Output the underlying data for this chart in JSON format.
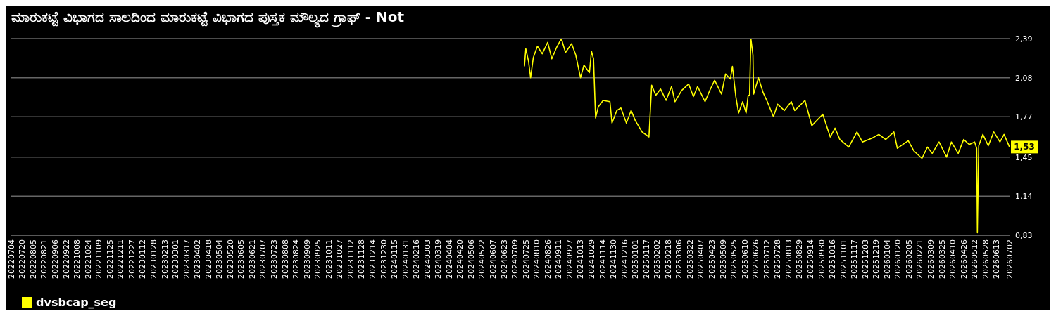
{
  "chart_data": {
    "type": "line",
    "title": "ಮಾರುಕಟ್ಟೆ ವಿಭಾಗದ ಸಾಲದಿಂದ ಮಾರುಕಟ್ಟೆ ವಿಭಾಗದ ಪುಸ್ತಕ ಮೌಲ್ಯದ ಗ್ರಾಫ್ - Not",
    "xlim": [
      "2022-07-04",
      "2026-07-02"
    ],
    "xticks": [
      {
        "value": "2022-07-04",
        "label": "20220704"
      },
      {
        "value": "2022-07-20",
        "label": "20220720"
      },
      {
        "value": "2022-08-05",
        "label": "20220805"
      },
      {
        "value": "2022-08-21",
        "label": "20220821"
      },
      {
        "value": "2022-09-06",
        "label": "20220906"
      },
      {
        "value": "2022-09-22",
        "label": "20220922"
      },
      {
        "value": "2022-10-08",
        "label": "20221008"
      },
      {
        "value": "2022-10-24",
        "label": "20221024"
      },
      {
        "value": "2022-11-09",
        "label": "20221109"
      },
      {
        "value": "2022-11-25",
        "label": "20221125"
      },
      {
        "value": "2022-12-11",
        "label": "20221211"
      },
      {
        "value": "2022-12-27",
        "label": "20221227"
      },
      {
        "value": "2023-01-12",
        "label": "20230112"
      },
      {
        "value": "2023-01-28",
        "label": "20230128"
      },
      {
        "value": "2023-02-13",
        "label": "20230213"
      },
      {
        "value": "2023-03-01",
        "label": "20230301"
      },
      {
        "value": "2023-03-17",
        "label": "20230317"
      },
      {
        "value": "2023-04-02",
        "label": "20230402"
      },
      {
        "value": "2023-04-18",
        "label": "20230418"
      },
      {
        "value": "2023-05-04",
        "label": "20230504"
      },
      {
        "value": "2023-05-20",
        "label": "20230520"
      },
      {
        "value": "2023-06-05",
        "label": "20230605"
      },
      {
        "value": "2023-06-21",
        "label": "20230621"
      },
      {
        "value": "2023-07-07",
        "label": "20230707"
      },
      {
        "value": "2023-07-23",
        "label": "20230723"
      },
      {
        "value": "2023-08-08",
        "label": "20230808"
      },
      {
        "value": "2023-08-24",
        "label": "20230824"
      },
      {
        "value": "2023-09-09",
        "label": "20230909"
      },
      {
        "value": "2023-09-25",
        "label": "20230925"
      },
      {
        "value": "2023-10-11",
        "label": "20231011"
      },
      {
        "value": "2023-10-27",
        "label": "20231027"
      },
      {
        "value": "2023-11-12",
        "label": "20231112"
      },
      {
        "value": "2023-11-28",
        "label": "20231128"
      },
      {
        "value": "2023-12-14",
        "label": "20231214"
      },
      {
        "value": "2023-12-30",
        "label": "20231230"
      },
      {
        "value": "2024-01-15",
        "label": "20240115"
      },
      {
        "value": "2024-01-31",
        "label": "20240131"
      },
      {
        "value": "2024-02-16",
        "label": "20240216"
      },
      {
        "value": "2024-03-03",
        "label": "20240303"
      },
      {
        "value": "2024-03-19",
        "label": "20240319"
      },
      {
        "value": "2024-04-04",
        "label": "20240404"
      },
      {
        "value": "2024-04-20",
        "label": "20240420"
      },
      {
        "value": "2024-05-06",
        "label": "20240506"
      },
      {
        "value": "2024-05-22",
        "label": "20240522"
      },
      {
        "value": "2024-06-07",
        "label": "20240607"
      },
      {
        "value": "2024-06-23",
        "label": "20240623"
      },
      {
        "value": "2024-07-09",
        "label": "20240709"
      },
      {
        "value": "2024-07-25",
        "label": "20240725"
      },
      {
        "value": "2024-08-10",
        "label": "20240810"
      },
      {
        "value": "2024-08-26",
        "label": "20240826"
      },
      {
        "value": "2024-09-11",
        "label": "20240911"
      },
      {
        "value": "2024-09-27",
        "label": "20240927"
      },
      {
        "value": "2024-10-13",
        "label": "20241013"
      },
      {
        "value": "2024-10-29",
        "label": "20241029"
      },
      {
        "value": "2024-11-14",
        "label": "20241114"
      },
      {
        "value": "2024-11-30",
        "label": "20241130"
      },
      {
        "value": "2024-12-16",
        "label": "20241216"
      },
      {
        "value": "2025-01-01",
        "label": "20250101"
      },
      {
        "value": "2025-01-17",
        "label": "20250117"
      },
      {
        "value": "2025-02-02",
        "label": "20250202"
      },
      {
        "value": "2025-02-18",
        "label": "20250218"
      },
      {
        "value": "2025-03-06",
        "label": "20250306"
      },
      {
        "value": "2025-03-22",
        "label": "20250322"
      },
      {
        "value": "2025-04-07",
        "label": "20250407"
      },
      {
        "value": "2025-04-23",
        "label": "20250423"
      },
      {
        "value": "2025-05-09",
        "label": "20250509"
      },
      {
        "value": "2025-05-25",
        "label": "20250525"
      },
      {
        "value": "2025-06-10",
        "label": "20250610"
      },
      {
        "value": "2025-06-26",
        "label": "20250626"
      },
      {
        "value": "2025-07-12",
        "label": "20250712"
      },
      {
        "value": "2025-07-28",
        "label": "20250728"
      },
      {
        "value": "2025-08-13",
        "label": "20250813"
      },
      {
        "value": "2025-08-29",
        "label": "20250829"
      },
      {
        "value": "2025-09-14",
        "label": "20250914"
      },
      {
        "value": "2025-09-30",
        "label": "20250930"
      },
      {
        "value": "2025-10-16",
        "label": "20251016"
      },
      {
        "value": "2025-11-01",
        "label": "20251101"
      },
      {
        "value": "2025-11-17",
        "label": "20251117"
      },
      {
        "value": "2025-12-03",
        "label": "20251203"
      },
      {
        "value": "2025-12-19",
        "label": "20251219"
      },
      {
        "value": "2026-01-04",
        "label": "20260104"
      },
      {
        "value": "2026-01-20",
        "label": "20260120"
      },
      {
        "value": "2026-02-05",
        "label": "20260205"
      },
      {
        "value": "2026-02-21",
        "label": "20260221"
      },
      {
        "value": "2026-03-09",
        "label": "20260309"
      },
      {
        "value": "2026-03-25",
        "label": "20260325"
      },
      {
        "value": "2026-04-10",
        "label": "20260410"
      },
      {
        "value": "2026-04-26",
        "label": "20260426"
      },
      {
        "value": "2026-05-12",
        "label": "20260512"
      },
      {
        "value": "2026-05-28",
        "label": "20260528"
      },
      {
        "value": "2026-06-13",
        "label": "20260613"
      },
      {
        "value": "2026-07-02",
        "label": "20260702"
      }
    ],
    "ylim": [
      0.83,
      2.39
    ],
    "yticks": [
      {
        "value": 0.83,
        "label": "0,83"
      },
      {
        "value": 1.14,
        "label": "1,14"
      },
      {
        "value": 1.45,
        "label": "1,45"
      },
      {
        "value": 1.77,
        "label": "1,77"
      },
      {
        "value": 2.08,
        "label": "2,08"
      },
      {
        "value": 2.39,
        "label": "2,39"
      }
    ],
    "grid": "y",
    "legend": "bottom left",
    "marker": "none",
    "line_style": "solid",
    "x": [
      "2024-07-23",
      "2024-07-25",
      "2024-07-29",
      "2024-08-01",
      "2024-08-05",
      "2024-08-11",
      "2024-08-18",
      "2024-08-26",
      "2024-09-01",
      "2024-09-08",
      "2024-09-15",
      "2024-09-21",
      "2024-09-30",
      "2024-10-06",
      "2024-10-13",
      "2024-10-18",
      "2024-10-26",
      "2024-10-29",
      "2024-11-01",
      "2024-11-04",
      "2024-11-08",
      "2024-11-15",
      "2024-11-25",
      "2024-11-28",
      "2024-12-05",
      "2024-12-11",
      "2024-12-19",
      "2024-12-26",
      "2025-01-01",
      "2025-01-11",
      "2025-01-21",
      "2025-01-25",
      "2025-01-31",
      "2025-02-07",
      "2025-02-15",
      "2025-02-23",
      "2025-02-28",
      "2025-03-10",
      "2025-03-20",
      "2025-03-27",
      "2025-04-02",
      "2025-04-13",
      "2025-04-20",
      "2025-04-27",
      "2025-05-07",
      "2025-05-13",
      "2025-05-20",
      "2025-05-23",
      "2025-05-28",
      "2025-06-01",
      "2025-06-07",
      "2025-06-12",
      "2025-06-15",
      "2025-06-17",
      "2025-06-19",
      "2025-06-22",
      "2025-06-23",
      "2025-06-30",
      "2025-07-07",
      "2025-07-13",
      "2025-07-22",
      "2025-07-28",
      "2025-08-07",
      "2025-08-17",
      "2025-08-22",
      "2025-09-06",
      "2025-09-16",
      "2025-10-02",
      "2025-10-13",
      "2025-10-20",
      "2025-10-27",
      "2025-11-09",
      "2025-11-21",
      "2025-11-29",
      "2025-12-13",
      "2025-12-23",
      "2026-01-02",
      "2026-01-14",
      "2026-01-19",
      "2026-02-04",
      "2026-02-12",
      "2026-02-24",
      "2026-03-04",
      "2026-03-11",
      "2026-03-21",
      "2026-04-01",
      "2026-04-08",
      "2026-04-18",
      "2026-04-26",
      "2026-05-04",
      "2026-05-12",
      "2026-05-15",
      "2026-05-16",
      "2026-05-18",
      "2026-05-24",
      "2026-06-01",
      "2026-06-09",
      "2026-06-18",
      "2026-06-24",
      "2026-07-02"
    ],
    "series": [
      {
        "name": "dvsbcap_seg",
        "color": "#ffff00",
        "values": [
          2.17,
          2.31,
          2.21,
          2.08,
          2.24,
          2.33,
          2.27,
          2.36,
          2.23,
          2.32,
          2.39,
          2.28,
          2.35,
          2.26,
          2.08,
          2.18,
          2.12,
          2.29,
          2.23,
          1.76,
          1.85,
          1.9,
          1.89,
          1.72,
          1.82,
          1.84,
          1.72,
          1.82,
          1.74,
          1.65,
          1.61,
          2.02,
          1.94,
          1.99,
          1.9,
          2.01,
          1.89,
          1.98,
          2.03,
          1.93,
          2.01,
          1.89,
          1.98,
          2.06,
          1.95,
          2.11,
          2.07,
          2.17,
          1.93,
          1.8,
          1.89,
          1.8,
          1.94,
          1.94,
          2.39,
          2.26,
          1.95,
          2.08,
          1.96,
          1.89,
          1.77,
          1.87,
          1.82,
          1.89,
          1.82,
          1.9,
          1.7,
          1.79,
          1.61,
          1.68,
          1.59,
          1.53,
          1.65,
          1.57,
          1.6,
          1.63,
          1.59,
          1.65,
          1.52,
          1.58,
          1.5,
          1.44,
          1.53,
          1.48,
          1.57,
          1.45,
          1.57,
          1.48,
          1.59,
          1.55,
          1.57,
          1.52,
          0.85,
          1.54,
          1.63,
          1.54,
          1.65,
          1.57,
          1.63,
          1.53
        ]
      }
    ],
    "annotations": [
      {
        "text": "1,53",
        "x": "2026-07-02",
        "y": 1.53
      }
    ]
  }
}
